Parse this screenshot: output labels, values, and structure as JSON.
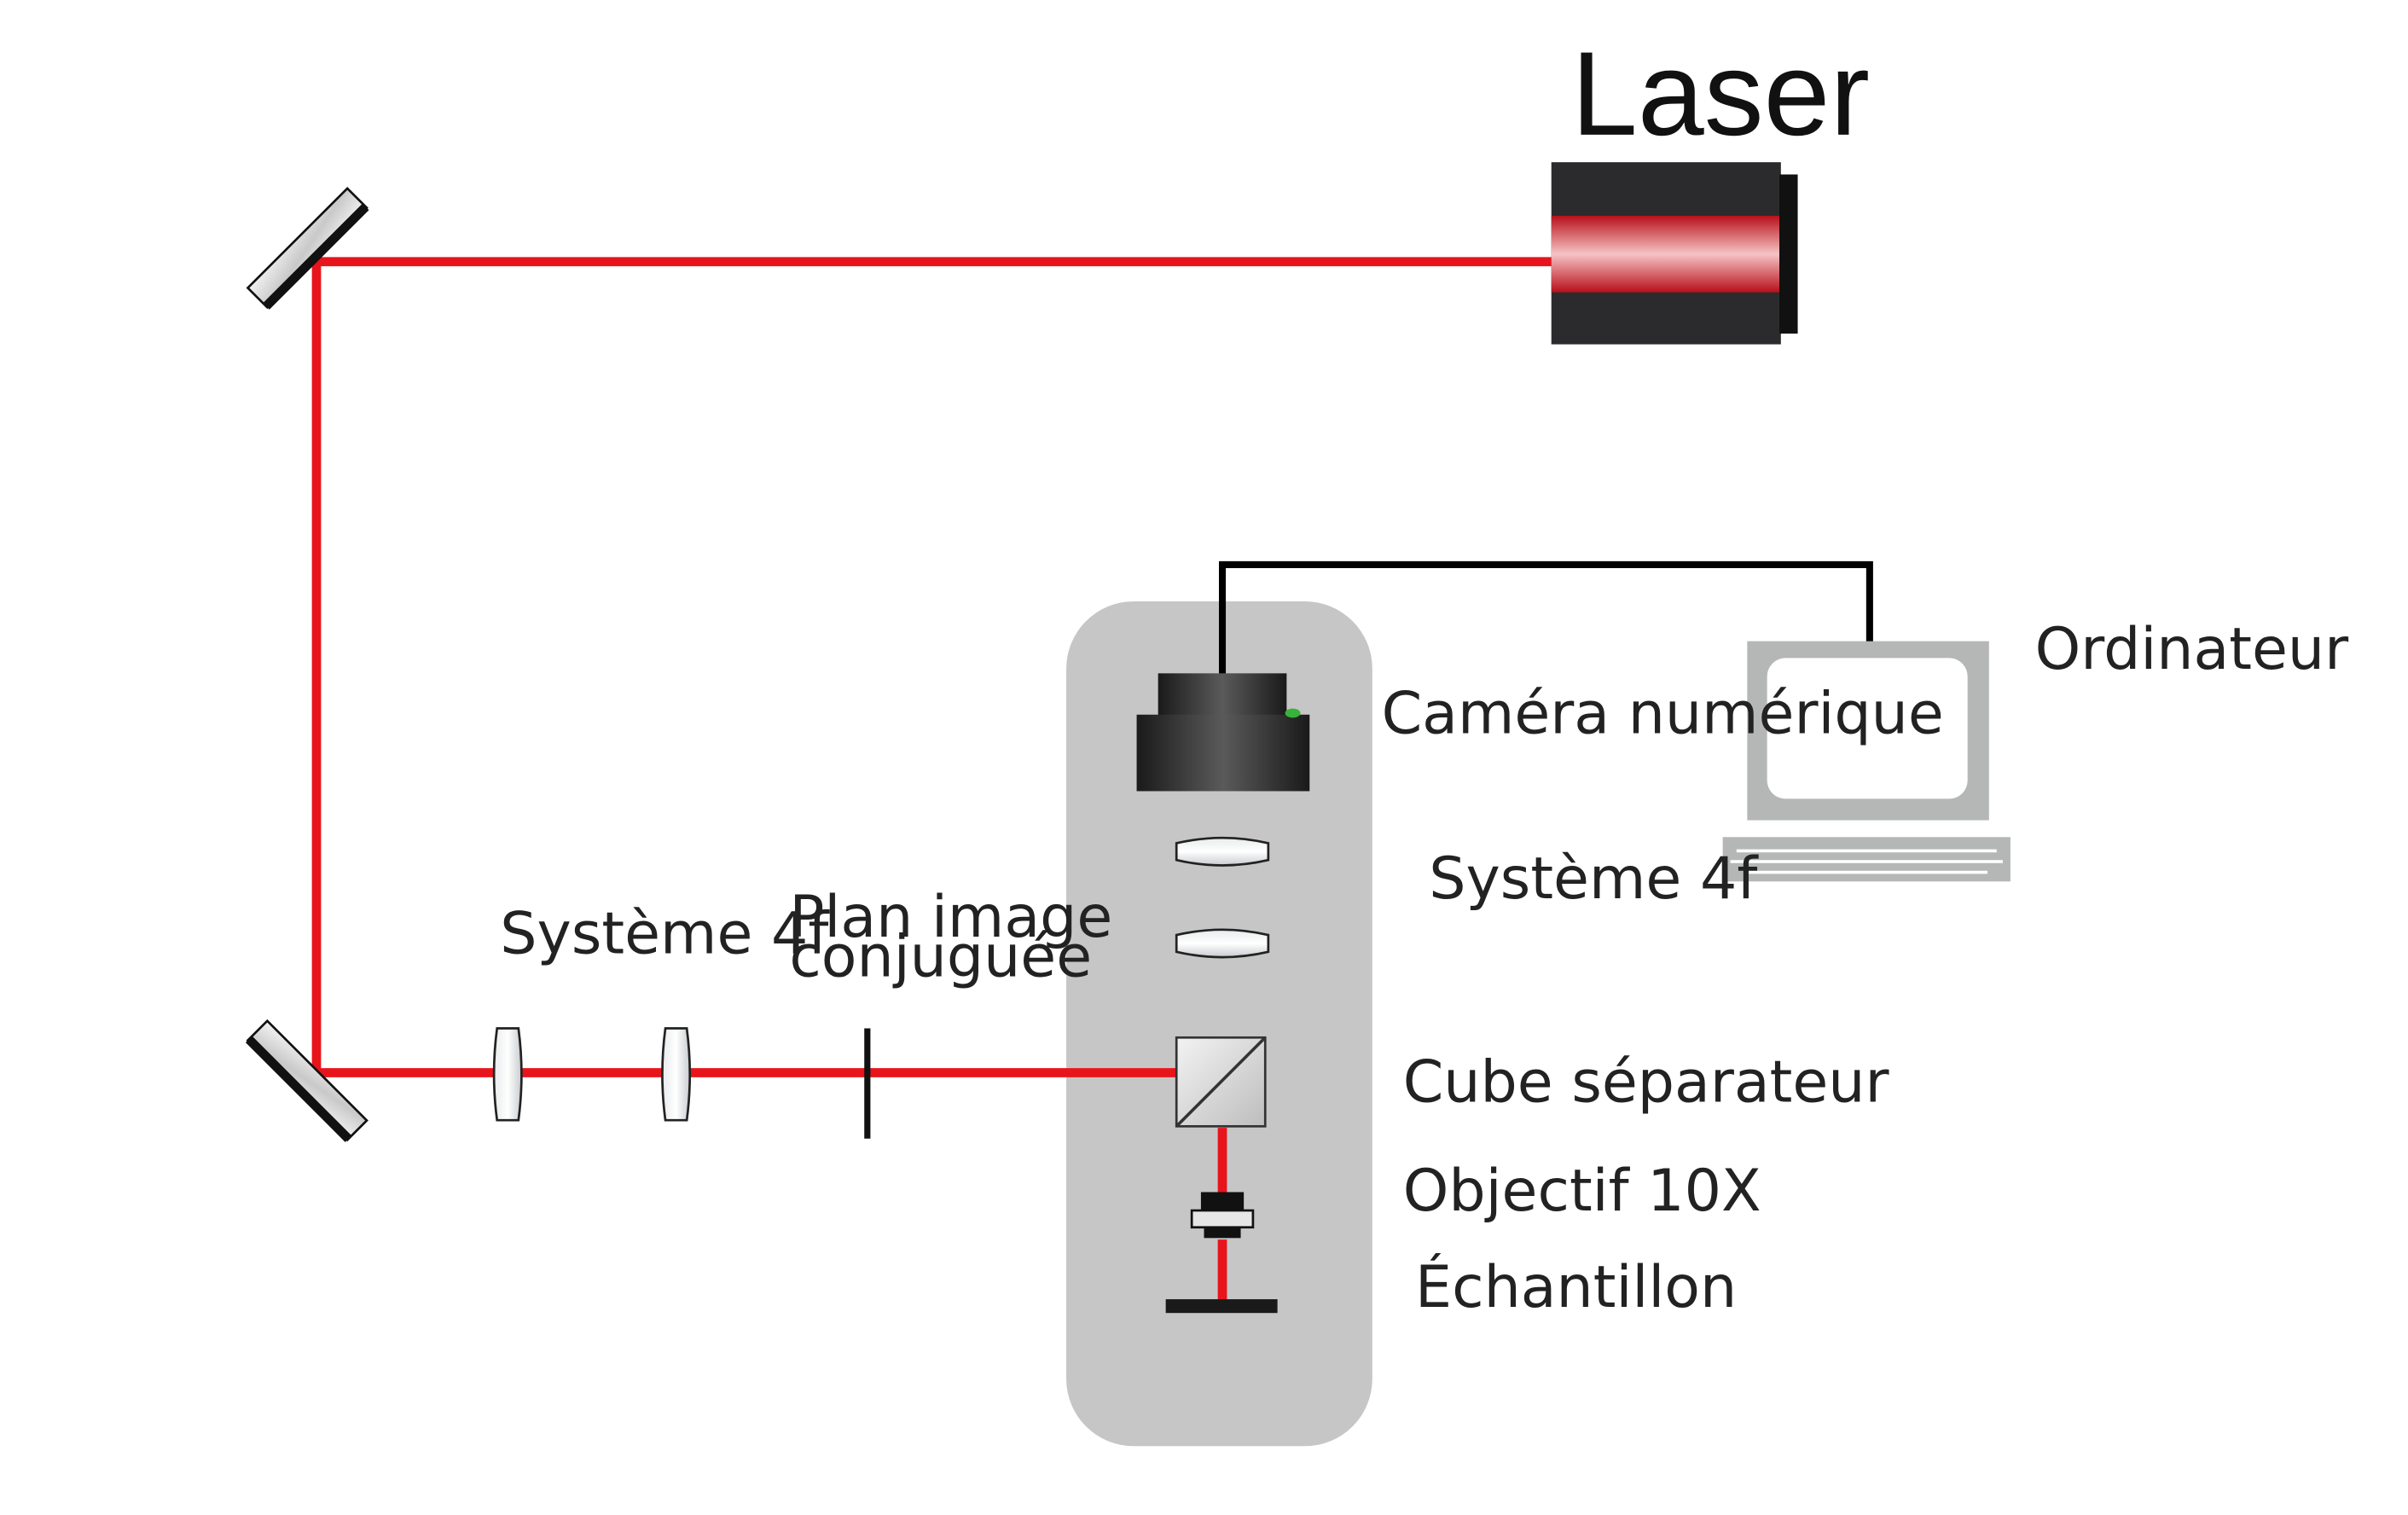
{
  "title": "Laser",
  "labels": {
    "systeme_4f_left": "Système 4f",
    "plan_image_line1": "Plan image",
    "plan_image_line2": "conjuguée",
    "camera": "Caméra numérique",
    "systeme_4f_right": "Système 4f",
    "cube": "Cube séparateur",
    "objectif": "Objectif 10X",
    "echantillon": "Échantillon",
    "ordinateur": "Ordinateur"
  },
  "colors": {
    "beam": "#e8141c",
    "housing": "#c6c6c6",
    "laser_body": "#2b2b2d",
    "cable": "#000000",
    "computer": "#b4b7b6"
  }
}
